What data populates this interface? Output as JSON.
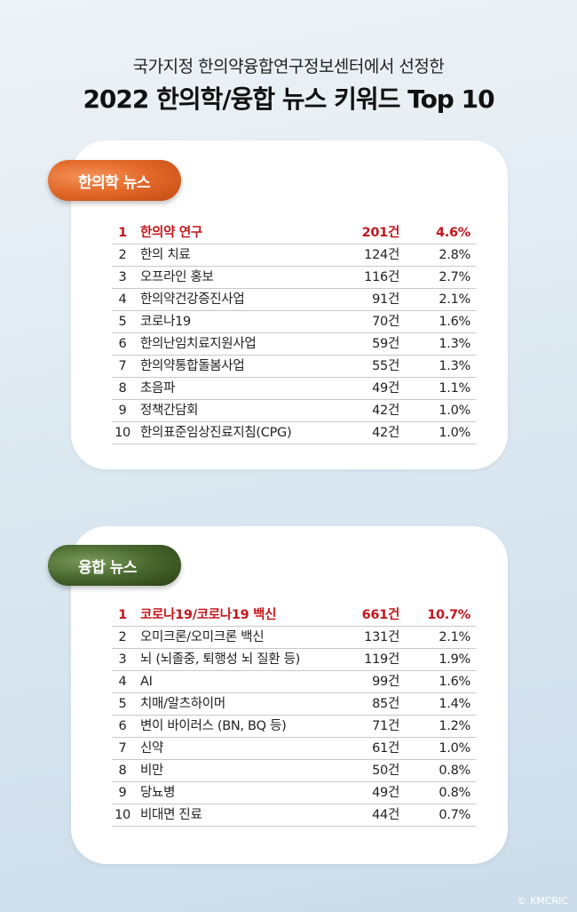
{
  "header": {
    "subtitle": "국가지정 한의약융합연구정보센터에서 선정한",
    "title": "2022 한의학/융합 뉴스 키워드 Top 10"
  },
  "sections": [
    {
      "label": "한의학 뉴스",
      "rows": [
        {
          "rank": "1",
          "keyword": "한의약 연구",
          "count": "201건",
          "percent": "4.6%"
        },
        {
          "rank": "2",
          "keyword": "한의 치료",
          "count": "124건",
          "percent": "2.8%"
        },
        {
          "rank": "3",
          "keyword": "오프라인 홍보",
          "count": "116건",
          "percent": "2.7%"
        },
        {
          "rank": "4",
          "keyword": "한의약건강증진사업",
          "count": "91건",
          "percent": "2.1%"
        },
        {
          "rank": "5",
          "keyword": "코로나19",
          "count": "70건",
          "percent": "1.6%"
        },
        {
          "rank": "6",
          "keyword": "한의난임치료지원사업",
          "count": "59건",
          "percent": "1.3%"
        },
        {
          "rank": "7",
          "keyword": "한의약통합돌봄사업",
          "count": "55건",
          "percent": "1.3%"
        },
        {
          "rank": "8",
          "keyword": "초음파",
          "count": "49건",
          "percent": "1.1%"
        },
        {
          "rank": "9",
          "keyword": "정책간담회",
          "count": "42건",
          "percent": "1.0%"
        },
        {
          "rank": "10",
          "keyword": "한의표준임상진료지침(CPG)",
          "count": "42건",
          "percent": "1.0%"
        }
      ]
    },
    {
      "label": "융합 뉴스",
      "rows": [
        {
          "rank": "1",
          "keyword": "코로나19/코로나19 백신",
          "count": "661건",
          "percent": "10.7%"
        },
        {
          "rank": "2",
          "keyword": "오미크론/오미크론 백신",
          "count": "131건",
          "percent": "2.1%"
        },
        {
          "rank": "3",
          "keyword": "뇌 (뇌졸중, 퇴행성 뇌 질환 등)",
          "count": "119건",
          "percent": "1.9%"
        },
        {
          "rank": "4",
          "keyword": "AI",
          "count": "99건",
          "percent": "1.6%"
        },
        {
          "rank": "5",
          "keyword": "치매/알츠하이머",
          "count": "85건",
          "percent": "1.4%"
        },
        {
          "rank": "6",
          "keyword": "변이 바이러스 (BN, BQ 등)",
          "count": "71건",
          "percent": "1.2%"
        },
        {
          "rank": "7",
          "keyword": "신약",
          "count": "61건",
          "percent": "1.0%"
        },
        {
          "rank": "8",
          "keyword": "비만",
          "count": "50건",
          "percent": "0.8%"
        },
        {
          "rank": "9",
          "keyword": "당뇨병",
          "count": "49건",
          "percent": "0.8%"
        },
        {
          "rank": "10",
          "keyword": "비대면 진료",
          "count": "44건",
          "percent": "0.7%"
        }
      ]
    }
  ],
  "credit": "© KMCRIC",
  "colors": {
    "highlight": "#c4161c",
    "pill_orange": "#e36a2a",
    "pill_green": "#47662c"
  }
}
